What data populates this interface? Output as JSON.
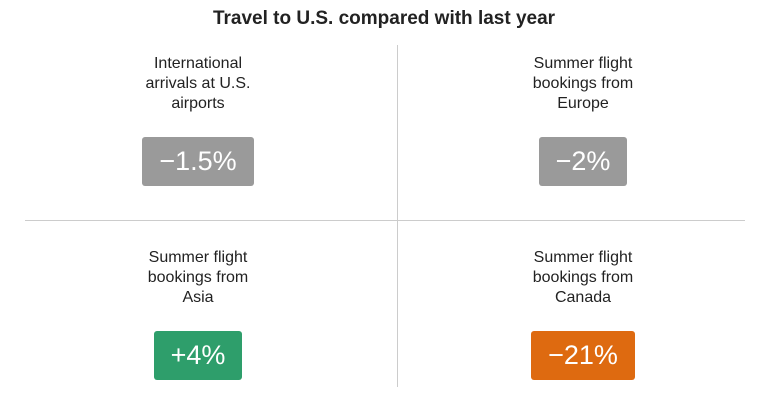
{
  "title": "Travel to U.S. compared with last year",
  "cards": [
    {
      "label": [
        "International",
        "arrivals at U.S.",
        "airports"
      ],
      "value": "−1.5%",
      "color": "#9a9a9a"
    },
    {
      "label": [
        "Summer flight",
        "bookings from",
        "Europe"
      ],
      "value": "−2%",
      "color": "#9a9a9a"
    },
    {
      "label": [
        "Summer flight",
        "bookings from",
        "Asia"
      ],
      "value": "+4%",
      "color": "#2e9e6b"
    },
    {
      "label": [
        "Summer flight",
        "bookings from",
        "Canada"
      ],
      "value": "−21%",
      "color": "#de6a10"
    }
  ]
}
